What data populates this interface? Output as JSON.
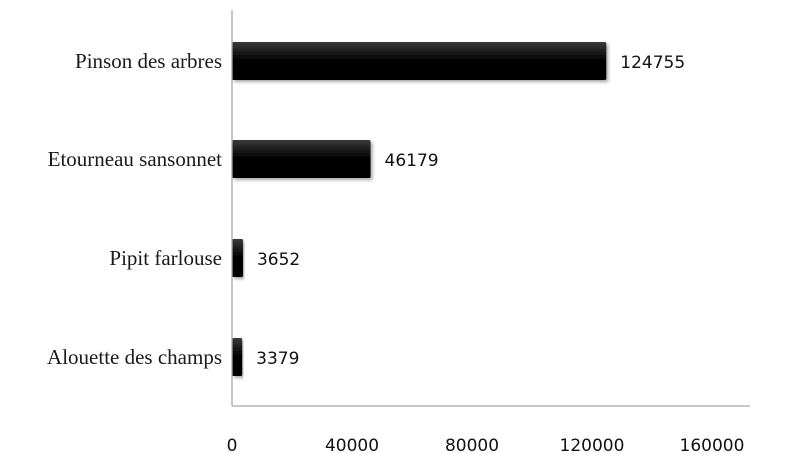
{
  "chart_data": {
    "type": "bar",
    "orientation": "horizontal",
    "title": "",
    "xlabel": "",
    "ylabel": "",
    "categories": [
      "Pinson des arbres",
      "Etourneau sansonnet",
      "Pipit farlouse",
      "Alouette des champs"
    ],
    "values": [
      124755,
      46179,
      3652,
      3379
    ],
    "data_labels": [
      "124755",
      "46179",
      "3652",
      "3379"
    ],
    "xlim": [
      0,
      160000
    ],
    "x_ticks": [
      0,
      40000,
      80000,
      120000,
      160000
    ],
    "x_tick_labels": [
      "0",
      "40000",
      "80000",
      "120000",
      "160000"
    ],
    "grid": false,
    "legend": "none",
    "bar_color": "#000000",
    "bar_highlight_color": "#3a3a3a",
    "axis_color": "#a6a6a6"
  }
}
